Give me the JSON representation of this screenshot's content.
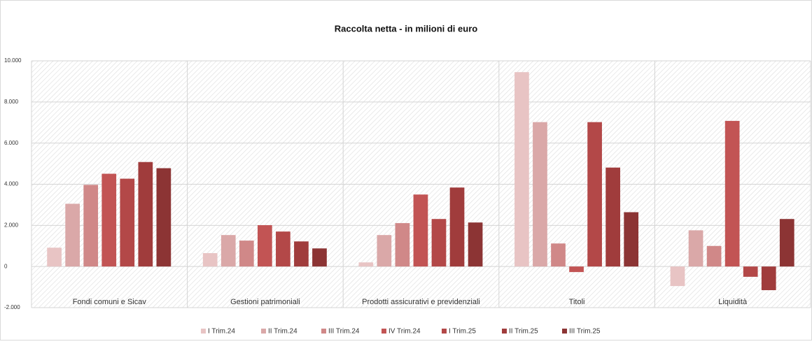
{
  "chart_data": {
    "type": "bar",
    "title": "Raccolta netta - in milioni di euro",
    "categories": [
      "Fondi comuni e Sicav",
      "Gestioni patrimoniali",
      "Prodotti assicurativi e previdenziali",
      "Titoli",
      "Liquidità"
    ],
    "series": [
      {
        "name": "I Trim.24",
        "color": "#e8c4c4",
        "values": [
          915,
          650,
          200,
          9450,
          -950
        ]
      },
      {
        "name": "II Trim.24",
        "color": "#daa8a8",
        "values": [
          3050,
          1530,
          1530,
          7020,
          1760
        ]
      },
      {
        "name": "III Trim.24",
        "color": "#d08888",
        "values": [
          3970,
          1260,
          2110,
          1120,
          1000
        ]
      },
      {
        "name": "IV Trim.24",
        "color": "#c25454",
        "values": [
          4510,
          2010,
          3500,
          -270,
          7080
        ]
      },
      {
        "name": "I Trim.25",
        "color": "#b34848",
        "values": [
          4270,
          1700,
          2310,
          7020,
          -500
        ]
      },
      {
        "name": "II Trim.25",
        "color": "#a03c3c",
        "values": [
          5080,
          1220,
          3840,
          4810,
          -1150
        ]
      },
      {
        "name": "III Trim.25",
        "color": "#8c3434",
        "values": [
          4780,
          880,
          2140,
          2640,
          2310
        ]
      }
    ],
    "ylim": [
      -2000,
      10000
    ],
    "yticks": [
      {
        "value": -2000,
        "label": "-2.000"
      },
      0,
      {
        "value": 2000,
        "label": "2.000"
      },
      {
        "value": 4000,
        "label": "4.000"
      },
      {
        "value": 6000,
        "label": "6.000"
      },
      {
        "value": 8000,
        "label": "8.000"
      },
      {
        "value": 10000,
        "label": "10.000"
      }
    ],
    "grid": true,
    "legend": "bottom"
  }
}
